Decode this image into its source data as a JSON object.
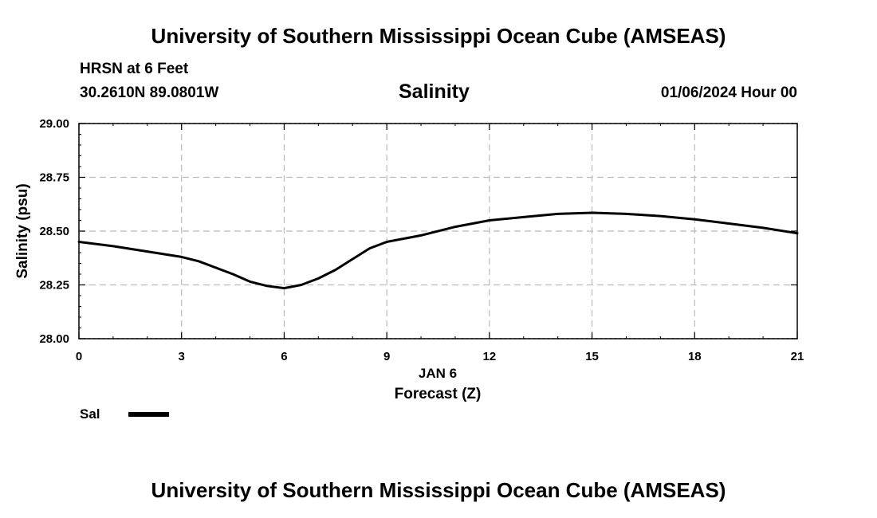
{
  "header": {
    "title_top": "University of Southern Mississippi Ocean Cube (AMSEAS)",
    "station": "HRSN at 6 Feet",
    "coords": "30.2610N  89.0801W",
    "parameter": "Salinity",
    "timestamp": "01/06/2024 Hour 00"
  },
  "footer": {
    "title_bottom": "University of Southern Mississippi Ocean Cube (AMSEAS)"
  },
  "colors": {
    "line": "#000000",
    "grid": "#bbbbbb"
  },
  "chart_data": {
    "type": "line",
    "title": "Salinity",
    "xlabel": "Forecast (Z)",
    "xlabel_day": "JAN 6",
    "ylabel": "Salinity (psu)",
    "xlim": [
      0,
      21
    ],
    "ylim": [
      28.0,
      29.0
    ],
    "xticks": [
      0,
      3,
      6,
      9,
      12,
      15,
      18,
      21
    ],
    "yticks": [
      28.0,
      28.25,
      28.5,
      28.75,
      29.0
    ],
    "ytick_labels": [
      "28.00",
      "28.25",
      "28.50",
      "28.75",
      "29.00"
    ],
    "grid": true,
    "legend_position": "bottom-left",
    "series": [
      {
        "name": "Sal",
        "x": [
          0,
          1,
          2,
          3,
          3.5,
          4,
          4.5,
          5,
          5.5,
          6,
          6.5,
          7,
          7.5,
          8,
          8.5,
          9,
          10,
          11,
          12,
          13,
          14,
          15,
          16,
          17,
          18,
          19,
          20,
          21
        ],
        "values": [
          28.45,
          28.43,
          28.405,
          28.38,
          28.36,
          28.33,
          28.3,
          28.265,
          28.245,
          28.235,
          28.25,
          28.28,
          28.32,
          28.37,
          28.42,
          28.45,
          28.48,
          28.52,
          28.55,
          28.565,
          28.58,
          28.585,
          28.58,
          28.57,
          28.555,
          28.535,
          28.515,
          28.49
        ]
      }
    ]
  }
}
